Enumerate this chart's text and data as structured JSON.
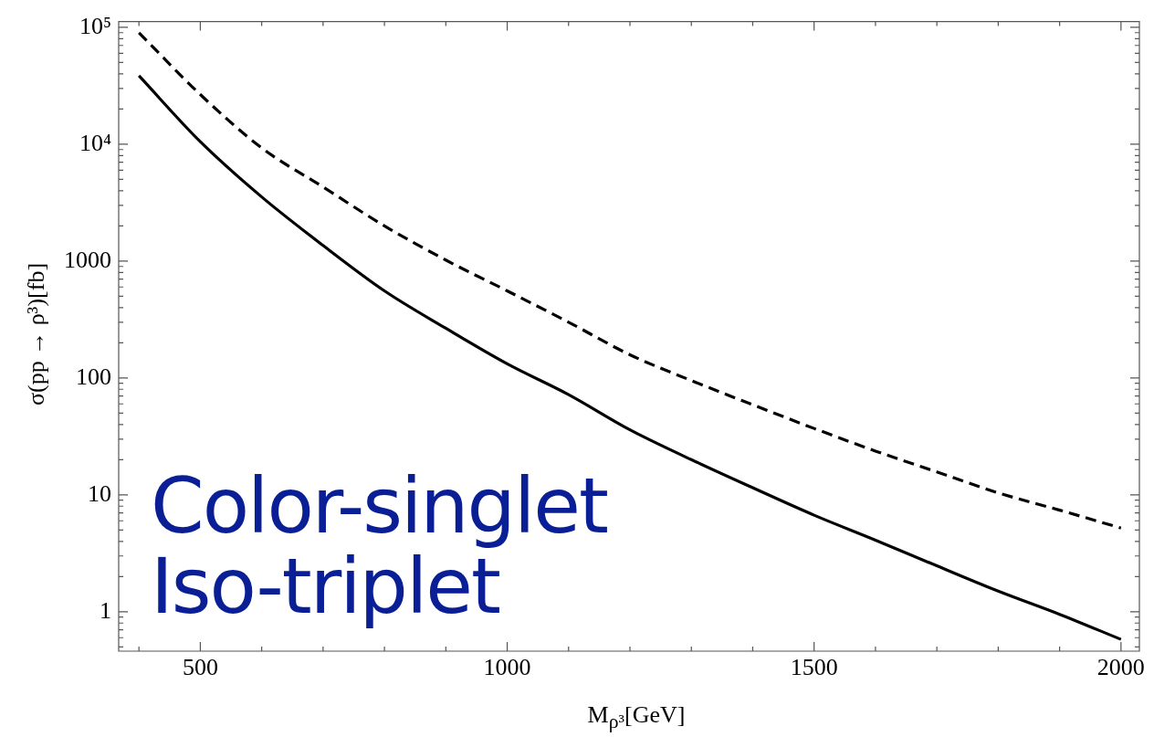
{
  "chart_data": {
    "type": "line",
    "xlabel": "M$_{ρ³}$[GeV]",
    "ylabel": "σ(pp → ρ³)[fb]",
    "annotations": [
      "Color-singlet\nIso-triplet"
    ],
    "x": [
      400,
      500,
      600,
      700,
      800,
      900,
      1000,
      1100,
      1200,
      1300,
      1400,
      1500,
      1600,
      1700,
      1800,
      1900,
      2000
    ],
    "series": [
      {
        "color": "#000000",
        "line_style": "dashed",
        "values": [
          90000,
          26600,
          9300,
          4300,
          2000,
          1020,
          556,
          300,
          158,
          95,
          59,
          37,
          23.7,
          15.7,
          10.4,
          7.4,
          5.2
        ]
      },
      {
        "color": "#000000",
        "line_style": "solid",
        "values": [
          38500,
          10500,
          3540,
          1360,
          556,
          266,
          132,
          72,
          36,
          20,
          11.5,
          6.7,
          4.1,
          2.47,
          1.5,
          0.95,
          0.58
        ]
      }
    ],
    "xlim": [
      367,
      2030
    ],
    "xticks": [
      {
        "value": 400,
        "label": null
      },
      500,
      {
        "value": 600,
        "label": null
      },
      {
        "value": 700,
        "label": null
      },
      {
        "value": 800,
        "label": null
      },
      {
        "value": 900,
        "label": null
      },
      1000,
      {
        "value": 1100,
        "label": null
      },
      {
        "value": 1200,
        "label": null
      },
      {
        "value": 1300,
        "label": null
      },
      {
        "value": 1400,
        "label": null
      },
      1500,
      {
        "value": 1600,
        "label": null
      },
      {
        "value": 1700,
        "label": null
      },
      {
        "value": 1800,
        "label": null
      },
      {
        "value": 1900,
        "label": null
      },
      2000
    ],
    "ylim": [
      0.46,
      112000
    ],
    "yticks": [
      {
        "value": 0.5,
        "label": null
      },
      {
        "value": 0.6,
        "label": null
      },
      {
        "value": 0.7,
        "label": null
      },
      {
        "value": 0.8,
        "label": null
      },
      {
        "value": 0.9,
        "label": null
      },
      1,
      {
        "value": 2,
        "label": null
      },
      {
        "value": 3,
        "label": null
      },
      {
        "value": 4,
        "label": null
      },
      {
        "value": 5,
        "label": null
      },
      {
        "value": 6,
        "label": null
      },
      {
        "value": 7,
        "label": null
      },
      {
        "value": 8,
        "label": null
      },
      {
        "value": 9,
        "label": null
      },
      10,
      {
        "value": 20,
        "label": null
      },
      {
        "value": 30,
        "label": null
      },
      {
        "value": 40,
        "label": null
      },
      {
        "value": 50,
        "label": null
      },
      {
        "value": 60,
        "label": null
      },
      {
        "value": 70,
        "label": null
      },
      {
        "value": 80,
        "label": null
      },
      {
        "value": 90,
        "label": null
      },
      100,
      {
        "value": 200,
        "label": null
      },
      {
        "value": 300,
        "label": null
      },
      {
        "value": 400,
        "label": null
      },
      {
        "value": 500,
        "label": null
      },
      {
        "value": 600,
        "label": null
      },
      {
        "value": 700,
        "label": null
      },
      {
        "value": 800,
        "label": null
      },
      {
        "value": 900,
        "label": null
      },
      1000,
      {
        "value": 2000,
        "label": null
      },
      {
        "value": 3000,
        "label": null
      },
      {
        "value": 4000,
        "label": null
      },
      {
        "value": 5000,
        "label": null
      },
      {
        "value": 6000,
        "label": null
      },
      {
        "value": 7000,
        "label": null
      },
      {
        "value": 8000,
        "label": null
      },
      {
        "value": 9000,
        "label": null
      },
      {
        "value": 10000,
        "label": "10⁴"
      },
      {
        "value": 20000,
        "label": null
      },
      {
        "value": 30000,
        "label": null
      },
      {
        "value": 40000,
        "label": null
      },
      {
        "value": 50000,
        "label": null
      },
      {
        "value": 60000,
        "label": null
      },
      {
        "value": 70000,
        "label": null
      },
      {
        "value": 80000,
        "label": null
      },
      {
        "value": 90000,
        "label": null
      },
      {
        "value": 100000,
        "label": "10⁵"
      }
    ],
    "log": true,
    "grid": false,
    "legend": false
  }
}
